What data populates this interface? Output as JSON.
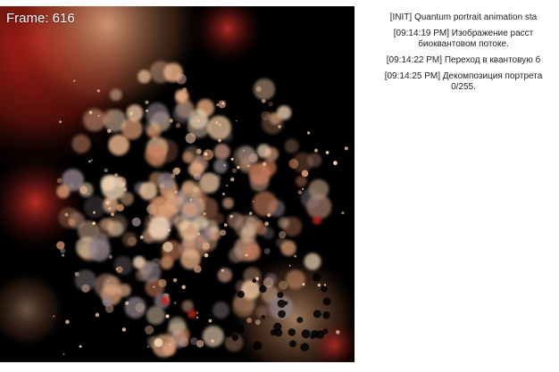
{
  "frame": {
    "label": "Frame: 616"
  },
  "canvas": {
    "background": "#000000",
    "palette": [
      "#f0c6a0",
      "#e8b088",
      "#d9996f",
      "#c77d5a",
      "#f3d8b8",
      "#b98a78",
      "#8e7f86"
    ],
    "accent_red": "#c0201a"
  },
  "log": [
    {
      "text": "[INIT] Quantum portrait animation sta"
    },
    {
      "text": "[09:14:19 PM] Изображение расст",
      "text2": "биоквантовом потоке."
    },
    {
      "text": "[09:14:22 PM] Переход в квантовую б"
    },
    {
      "text": "[09:14:25 PM] Декомпозиция портрета",
      "text2": "0/255."
    }
  ]
}
